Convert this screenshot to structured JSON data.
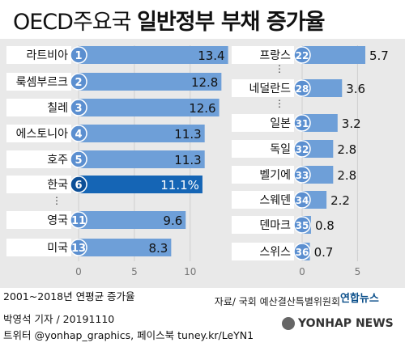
{
  "header": {
    "title_light": "OECD주요국",
    "title_bold": "일반정부 부채 증가율"
  },
  "chart_data": [
    {
      "type": "bar",
      "orientation": "horizontal",
      "categories": [
        "라트비아",
        "룩셈부르크",
        "칠레",
        "에스토니아",
        "호주",
        "한국",
        "영국",
        "미국"
      ],
      "ranks": [
        "1",
        "2",
        "3",
        "4",
        "5",
        "6",
        "11",
        "13"
      ],
      "values": [
        13.4,
        12.8,
        12.6,
        11.3,
        11.3,
        11.1,
        9.6,
        8.3
      ],
      "value_labels": [
        "13.4",
        "12.8",
        "12.6",
        "11.3",
        "11.3",
        "11.1%",
        "9.6",
        "8.3"
      ],
      "highlight_index": 5,
      "ellipsis_after_index": 5,
      "xlim": [
        0,
        13.5
      ],
      "xticks": [
        "0",
        "5",
        "10"
      ],
      "xtick_values": [
        0,
        5,
        10
      ]
    },
    {
      "type": "bar",
      "orientation": "horizontal",
      "categories": [
        "프랑스",
        "네덜란드",
        "일본",
        "독일",
        "벨기에",
        "스웨덴",
        "덴마크",
        "스위스"
      ],
      "ranks": [
        "22",
        "28",
        "31",
        "32",
        "33",
        "34",
        "35",
        "36"
      ],
      "values": [
        5.7,
        3.6,
        3.2,
        2.8,
        2.8,
        2.2,
        0.8,
        0.7
      ],
      "value_labels": [
        "5.7",
        "3.6",
        "3.2",
        "2.8",
        "2.8",
        "2.2",
        "0.8",
        "0.7"
      ],
      "ellipsis_after_index": [
        0,
        1
      ],
      "xlim": [
        0,
        5.7
      ],
      "xticks": [
        "0",
        "5"
      ],
      "xtick_values": [
        0,
        5
      ]
    }
  ],
  "footer": {
    "period": "2001~2018년 연평균 증가율",
    "source": "자료/ 국회 예산결산특별위원회",
    "brand": "연합뉴스",
    "reporter": "박영석 기자 / 20191110",
    "social": "트위터 @yonhap_graphics, 페이스북 tuney.kr/LeYN1",
    "watermark": "YONHAP NEWS"
  },
  "colors": {
    "bar": "#6e9fd8",
    "highlight_bar": "#1565b5",
    "rank_circle": "#5b8fd0",
    "highlight_circle": "#0d4f97",
    "label_box": "#ffffff",
    "panel": "#e9e9e9"
  }
}
